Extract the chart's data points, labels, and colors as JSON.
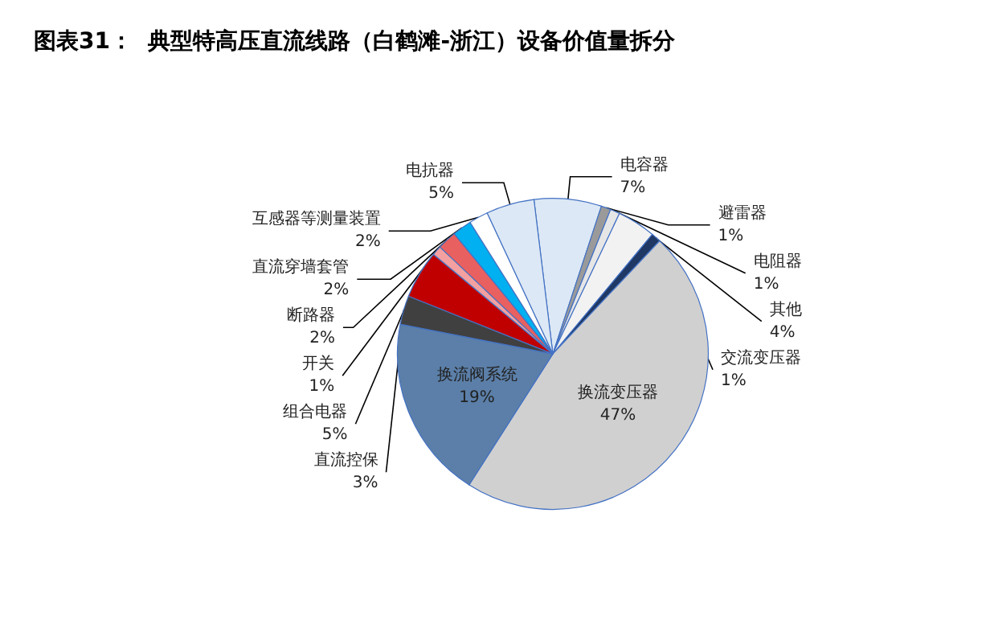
{
  "chart_data": {
    "type": "pie",
    "title": "图表31：  典型特高压直流线路（白鹤滩-浙江）设备价值量拆分",
    "categories": [
      "电容器",
      "避雷器",
      "电阻器",
      "其他",
      "交流变压器",
      "换流变压器",
      "换流阀系统",
      "直流控保",
      "组合电器",
      "开关",
      "断路器",
      "直流穿墙套管",
      "互感器等测量装置",
      "电抗器"
    ],
    "values": [
      7,
      1,
      1,
      4,
      1,
      47,
      19,
      3,
      5,
      1,
      2,
      2,
      2,
      5
    ],
    "value_labels": [
      "7%",
      "1%",
      "1%",
      "4%",
      "1%",
      "47%",
      "19%",
      "3%",
      "5%",
      "1%",
      "2%",
      "2%",
      "2%",
      "5%"
    ],
    "colors": [
      "#dce8f5",
      "#9a9a9a",
      "#e6e6e6",
      "#f2f2f2",
      "#1f3864",
      "#d0d0d0",
      "#5b7fa8",
      "#404040",
      "#c00000",
      "#f4a0a0",
      "#e86060",
      "#00b0f0",
      "#ffffff",
      "#dce8f5"
    ],
    "legend": false
  }
}
